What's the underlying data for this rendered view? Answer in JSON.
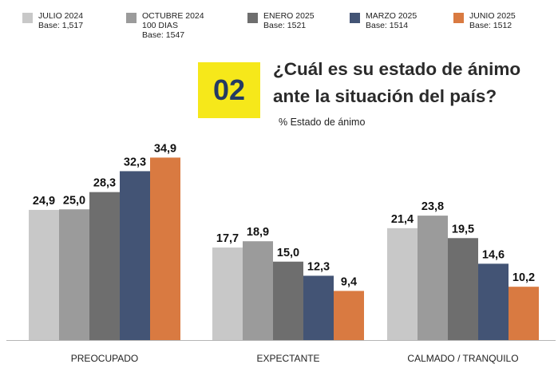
{
  "question_number": "02",
  "title_lines": [
    "¿Cuál es su estado de ánimo",
    "ante la situación del país?"
  ],
  "subtitle": "% Estado de ánimo",
  "legend": [
    {
      "name": "JULIO 2024",
      "base_lines": [
        "Base: 1,517"
      ],
      "color": "#c8c8c8"
    },
    {
      "name": "OCTUBRE 2024",
      "base_lines": [
        "100 DIAS",
        "Base: 1547"
      ],
      "color": "#9b9b9b"
    },
    {
      "name": "ENERO 2025",
      "base_lines": [
        "Base: 1521"
      ],
      "color": "#6e6e6e"
    },
    {
      "name": "MARZO 2025",
      "base_lines": [
        "Base: 1514"
      ],
      "color": "#435475"
    },
    {
      "name": "JUNIO 2025",
      "base_lines": [
        "Base: 1512"
      ],
      "color": "#d97a41"
    }
  ],
  "chart_data": {
    "type": "bar",
    "title": "¿Cuál es su estado de ánimo ante la situación del país?",
    "subtitle": "% Estado de ánimo",
    "categories": [
      "PREOCUPADO",
      "EXPECTANTE",
      "CALMADO / TRANQUILO"
    ],
    "series": [
      {
        "name": "JULIO 2024",
        "values": [
          24.9,
          17.7,
          21.4
        ]
      },
      {
        "name": "OCTUBRE 2024",
        "values": [
          25.0,
          18.9,
          23.8
        ]
      },
      {
        "name": "ENERO 2025",
        "values": [
          28.3,
          15.0,
          19.5
        ]
      },
      {
        "name": "MARZO 2025",
        "values": [
          32.3,
          12.3,
          14.6
        ]
      },
      {
        "name": "JUNIO 2025",
        "values": [
          34.9,
          9.4,
          10.2
        ]
      }
    ],
    "value_labels": [
      [
        "24,9",
        "17,7",
        "21,4"
      ],
      [
        "25,0",
        "18,9",
        "23,8"
      ],
      [
        "28,3",
        "15,0",
        "19,5"
      ],
      [
        "32,3",
        "12,3",
        "14,6"
      ],
      [
        "34,9",
        "9,4",
        "10,2"
      ]
    ],
    "ylim": [
      0,
      35
    ],
    "xlabel": "",
    "ylabel": ""
  }
}
